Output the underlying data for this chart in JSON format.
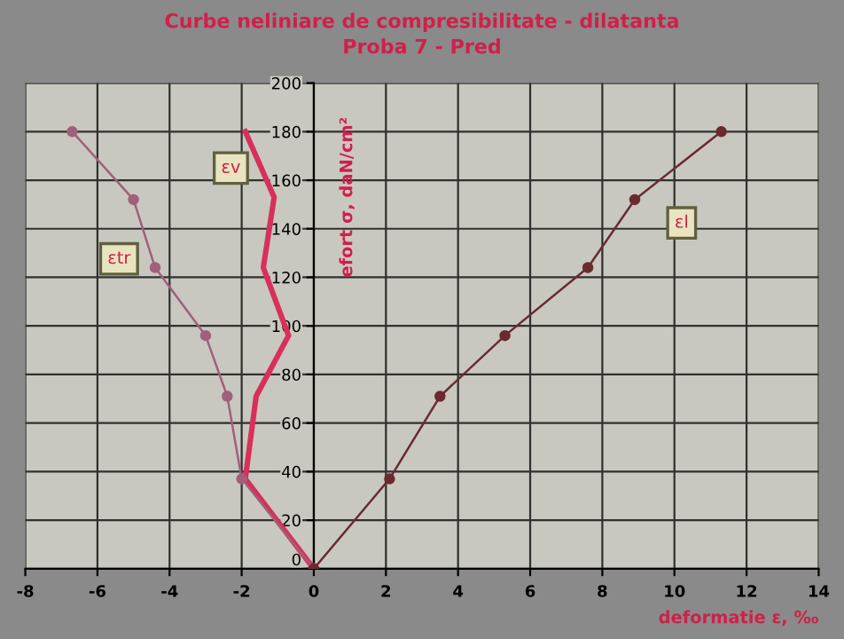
{
  "chart_data": {
    "type": "line",
    "title": "Curbe neliniare de compresibilitate - dilatanta",
    "subtitle": "Proba 7 - Pred",
    "xlabel": "deformatie ε, ‰",
    "ylabel": "efort σ, daN/cm²",
    "xlim": [
      -8,
      14
    ],
    "xticks": [
      -8,
      -6,
      -4,
      -2,
      0,
      2,
      4,
      6,
      8,
      10,
      12,
      14
    ],
    "ylim": [
      0,
      200
    ],
    "yticks": [
      0,
      20,
      40,
      60,
      80,
      100,
      120,
      140,
      160,
      180,
      200
    ],
    "grid": true,
    "legend": false,
    "marker": "circle",
    "series": [
      {
        "name": "εv",
        "color": "#d8305a",
        "marker": "none",
        "x": [
          0,
          -1.9,
          -1.6,
          -0.7,
          -1.4,
          -1.1,
          -1.9
        ],
        "values": [
          0,
          37,
          71,
          96,
          124,
          153,
          180
        ]
      },
      {
        "name": "εtr",
        "color": "#a0607a",
        "x": [
          0,
          -2.0,
          -2.4,
          -3.0,
          -4.4,
          -5.0,
          -6.7
        ],
        "values": [
          0,
          37,
          71,
          96,
          124,
          152,
          180
        ]
      },
      {
        "name": "εl",
        "color": "#6a2a30",
        "x": [
          0,
          2.1,
          3.5,
          5.3,
          7.6,
          8.9,
          11.3
        ],
        "values": [
          0,
          37,
          71,
          96,
          124,
          152,
          180
        ]
      }
    ]
  }
}
